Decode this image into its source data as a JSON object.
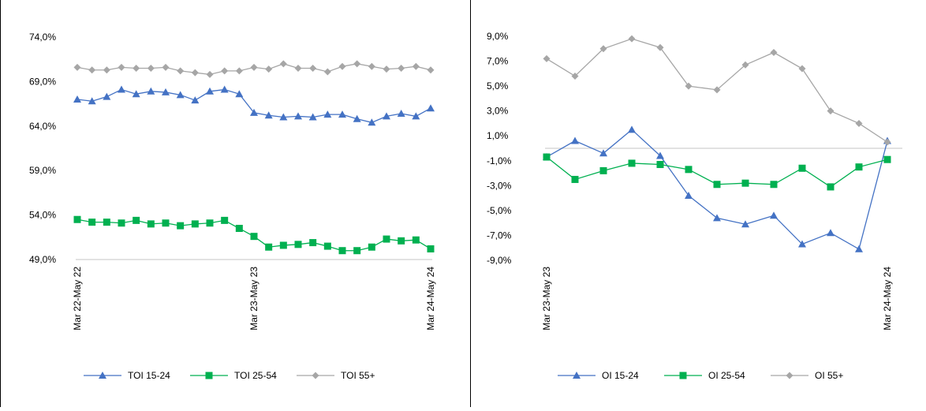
{
  "colors": {
    "oi_15_24": "#4472C4",
    "oi_25_54": "#00B050",
    "oi_55": "#A6A6A6",
    "grid": "#D9D9D9"
  },
  "chart_data": [
    {
      "type": "line",
      "title": "",
      "ylim": [
        49.0,
        74.0
      ],
      "y_ticks": [
        "74,0%",
        "69,0%",
        "64,0%",
        "59,0%",
        "54,0%",
        "49,0%"
      ],
      "y_tick_values": [
        74.0,
        69.0,
        64.0,
        59.0,
        54.0,
        49.0
      ],
      "x_labels": [
        "Mar 22-May 22",
        "Mar 23-May 23",
        "Mar 24-May 24"
      ],
      "x_label_index": [
        0,
        12,
        24
      ],
      "legend_position": "bottom",
      "series": [
        {
          "name": "TOI 15-24",
          "marker": "triangle",
          "color": "#4472C4",
          "values": [
            67.0,
            66.8,
            67.3,
            68.1,
            67.6,
            67.9,
            67.8,
            67.5,
            66.9,
            67.9,
            68.1,
            67.6,
            65.5,
            65.2,
            65.0,
            65.1,
            65.0,
            65.3,
            65.3,
            64.8,
            64.4,
            65.1,
            65.4,
            65.1,
            66.0
          ]
        },
        {
          "name": "TOI 25-54",
          "marker": "square",
          "color": "#00B050",
          "values": [
            53.5,
            53.2,
            53.2,
            53.1,
            53.4,
            53.0,
            53.1,
            52.8,
            53.0,
            53.1,
            53.4,
            52.5,
            51.6,
            50.4,
            50.6,
            50.7,
            50.9,
            50.5,
            50.0,
            50.0,
            50.4,
            51.3,
            51.1,
            51.2,
            50.2
          ]
        },
        {
          "name": "TOI 55+",
          "marker": "diamond",
          "color": "#A6A6A6",
          "values": [
            70.6,
            70.3,
            70.3,
            70.6,
            70.5,
            70.5,
            70.6,
            70.2,
            70.0,
            69.8,
            70.2,
            70.2,
            70.6,
            70.4,
            71.0,
            70.5,
            70.5,
            70.1,
            70.7,
            71.0,
            70.7,
            70.4,
            70.5,
            70.7,
            70.3
          ]
        }
      ]
    },
    {
      "type": "line",
      "title": "",
      "ylim": [
        -9.0,
        9.0
      ],
      "y_ticks": [
        "9,0%",
        "7,0%",
        "5,0%",
        "3,0%",
        "1,0%",
        "-1,0%",
        "-3,0%",
        "-5,0%",
        "-7,0%",
        "-9,0%"
      ],
      "y_tick_values": [
        9.0,
        7.0,
        5.0,
        3.0,
        1.0,
        -1.0,
        -3.0,
        -5.0,
        -7.0,
        -9.0
      ],
      "x_labels": [
        "Mar 23-May 23",
        "Mar 24-May 24"
      ],
      "x_label_index": [
        0,
        12
      ],
      "legend_position": "bottom",
      "series": [
        {
          "name": "OI 15-24",
          "marker": "triangle",
          "color": "#4472C4",
          "values": [
            -0.7,
            0.6,
            -0.4,
            1.5,
            -0.6,
            -3.8,
            -5.6,
            -6.1,
            -5.4,
            -7.7,
            -6.8,
            -8.1,
            0.6
          ]
        },
        {
          "name": "OI 25-54",
          "marker": "square",
          "color": "#00B050",
          "values": [
            -0.7,
            -2.5,
            -1.8,
            -1.2,
            -1.3,
            -1.7,
            -2.9,
            -2.8,
            -2.9,
            -1.6,
            -3.1,
            -1.5,
            -0.9
          ]
        },
        {
          "name": "OI 55+",
          "marker": "diamond",
          "color": "#A6A6A6",
          "values": [
            7.2,
            5.8,
            8.0,
            8.8,
            8.1,
            5.0,
            4.7,
            6.7,
            7.7,
            6.4,
            3.0,
            2.0,
            0.5
          ]
        }
      ]
    }
  ]
}
